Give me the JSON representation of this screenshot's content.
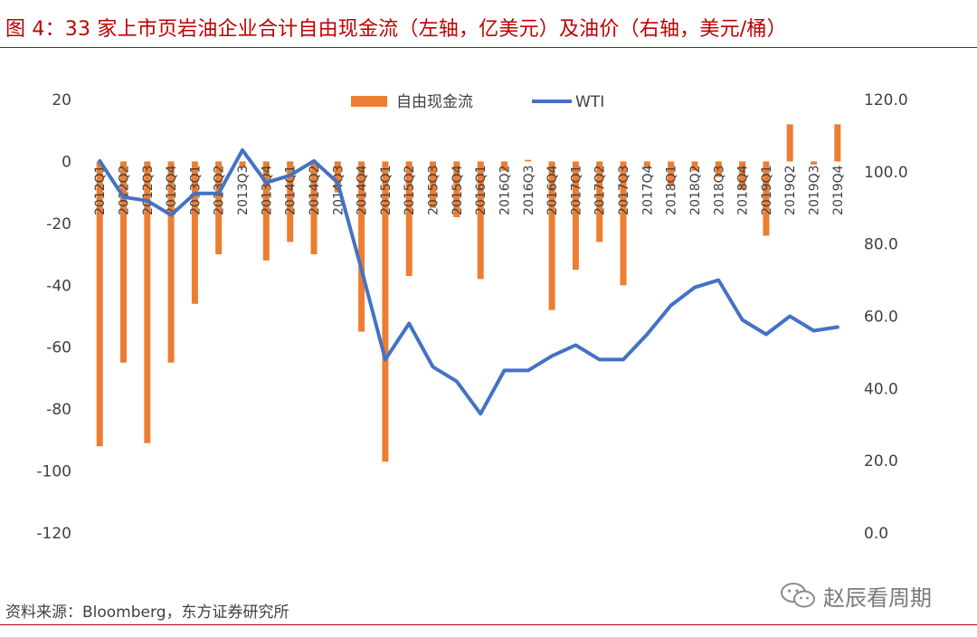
{
  "figure": {
    "title": "图 4：33 家上市页岩油企业合计自由现金流（左轴，亿美元）及油价（右轴，美元/桶）",
    "source": "资料来源：Bloomberg，东方证券研究所",
    "watermark": "赵辰看周期"
  },
  "colors": {
    "title": "#c00000",
    "bar": "#ed7d31",
    "line": "#4472c4",
    "text": "#404040"
  },
  "chart_data": {
    "type": "bar+line",
    "title": "",
    "legend_position": "top-center",
    "grid": false,
    "categories": [
      "2012Q1",
      "2012Q2",
      "2012Q3",
      "2012Q4",
      "2013Q1",
      "2013Q2",
      "2013Q3",
      "2013Q4",
      "2014Q1",
      "2014Q2",
      "2014Q3",
      "2014Q4",
      "2015Q1",
      "2015Q2",
      "2015Q3",
      "2015Q4",
      "2016Q1",
      "2016Q2",
      "2016Q3",
      "2016Q4",
      "2017Q1",
      "2017Q2",
      "2017Q3",
      "2017Q4",
      "2018Q1",
      "2018Q2",
      "2018Q3",
      "2018Q4",
      "2019Q1",
      "2019Q2",
      "2019Q3",
      "2019Q4"
    ],
    "y_left": {
      "min": -120,
      "max": 20,
      "ticks": [
        20,
        0,
        -20,
        -40,
        -60,
        -80,
        -100,
        -120
      ]
    },
    "y_right": {
      "min": 0,
      "max": 120,
      "ticks": [
        "120.0",
        "100.0",
        "80.0",
        "60.0",
        "40.0",
        "20.0",
        "0.0"
      ]
    },
    "series": [
      {
        "name": "自由现金流",
        "type": "bar",
        "axis": "left",
        "values": [
          -92,
          -65,
          -91,
          -65,
          -46,
          -30,
          -2,
          -32,
          -26,
          -30,
          -10,
          -55,
          -97,
          -37,
          -15,
          -18,
          -38,
          -3,
          0.5,
          -48,
          -35,
          -26,
          -40,
          -2,
          -8,
          -3,
          -5,
          -9,
          -24,
          12,
          -1,
          12
        ]
      },
      {
        "name": "WTI",
        "type": "line",
        "axis": "right",
        "values": [
          103,
          93,
          92,
          88,
          94,
          94,
          106,
          97,
          99,
          103,
          97,
          73,
          48,
          58,
          46,
          42,
          33,
          45,
          45,
          49,
          52,
          48,
          48,
          55,
          63,
          68,
          70,
          59,
          55,
          60,
          56,
          57
        ]
      }
    ]
  }
}
